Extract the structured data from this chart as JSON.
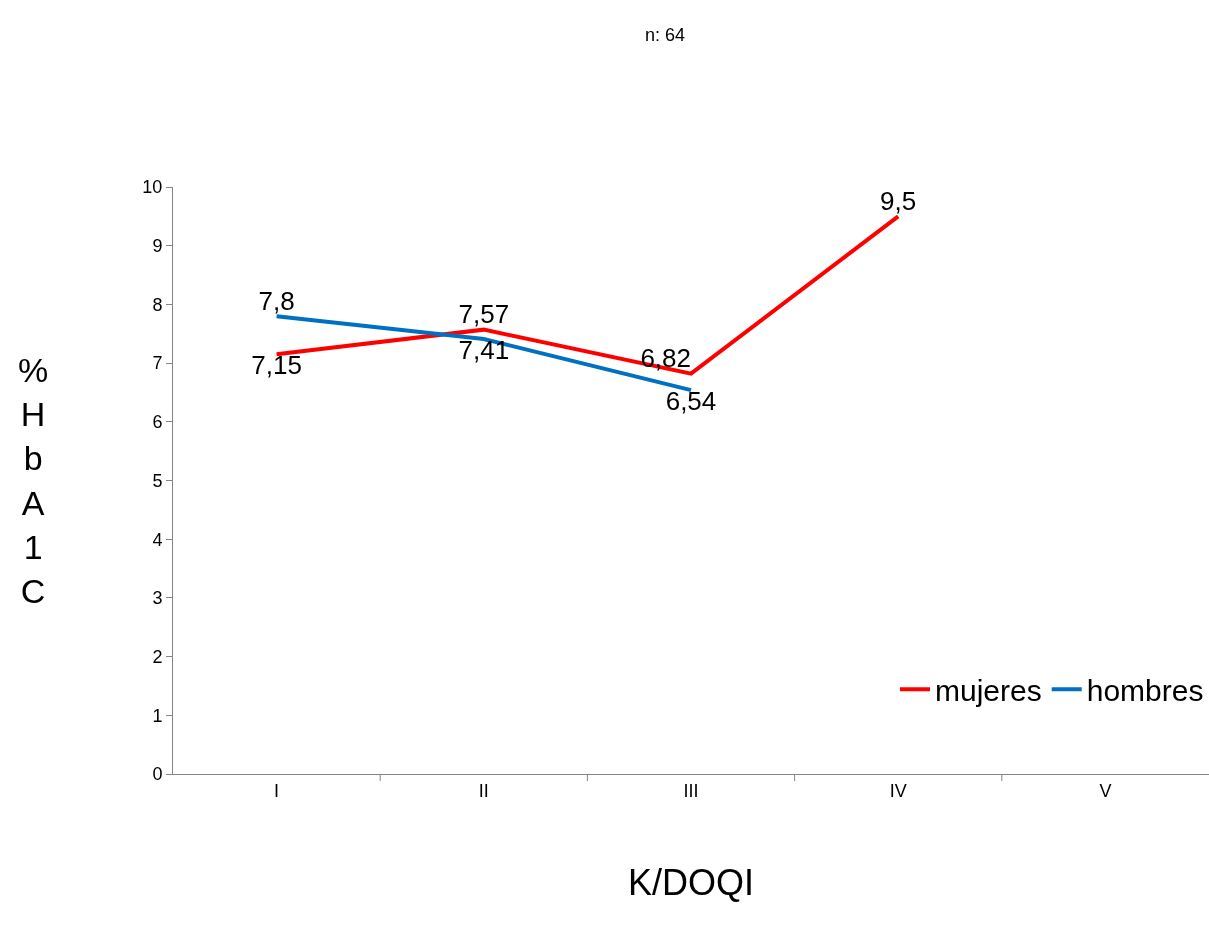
{
  "chart_data": {
    "type": "line",
    "title": "n: 64",
    "xlabel": "K/DOQI",
    "ylabel": "%HbA1C",
    "categories": [
      "I",
      "II",
      "III",
      "IV",
      "V"
    ],
    "series": [
      {
        "name": "mujeres",
        "color": "#ff0000",
        "values": [
          7.15,
          7.57,
          6.82,
          9.5,
          null
        ],
        "value_labels": [
          "7,15",
          "7,57",
          "6,82",
          "9,5",
          null
        ]
      },
      {
        "name": "hombres",
        "color": "#0070c0",
        "values": [
          7.8,
          7.41,
          6.54,
          null,
          null
        ],
        "value_labels": [
          "7,8",
          "7,41",
          "6,54",
          null,
          null
        ]
      }
    ],
    "ylim": [
      0,
      10
    ],
    "yticks": [
      0,
      1,
      2,
      3,
      4,
      5,
      6,
      7,
      8,
      9,
      10
    ],
    "grid": false,
    "legend": "bottom right",
    "marker": "none",
    "line_style": "solid"
  }
}
